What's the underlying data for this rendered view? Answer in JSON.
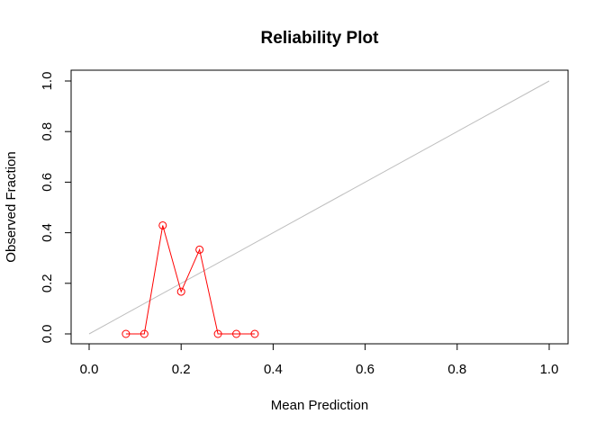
{
  "chart_data": {
    "type": "line",
    "title": "Reliability Plot",
    "xlabel": "Mean Prediction",
    "ylabel": "Observed Fraction",
    "xlim": [
      0,
      1
    ],
    "ylim": [
      0,
      1
    ],
    "x_ticks": [
      "0.0",
      "0.2",
      "0.4",
      "0.6",
      "0.8",
      "1.0"
    ],
    "y_ticks": [
      "0.0",
      "0.2",
      "0.4",
      "0.6",
      "0.8",
      "1.0"
    ],
    "grid": false,
    "reference_line": {
      "x": [
        0,
        1
      ],
      "y": [
        0,
        1
      ],
      "color": "#bebebe"
    },
    "series": [
      {
        "color": "#ff0000",
        "marker": "open-circle",
        "x": [
          0.08,
          0.12,
          0.16,
          0.2,
          0.24,
          0.28,
          0.32,
          0.36
        ],
        "y": [
          0.0,
          0.0,
          0.429,
          0.167,
          0.333,
          0.0,
          0.0,
          0.0
        ]
      }
    ]
  }
}
